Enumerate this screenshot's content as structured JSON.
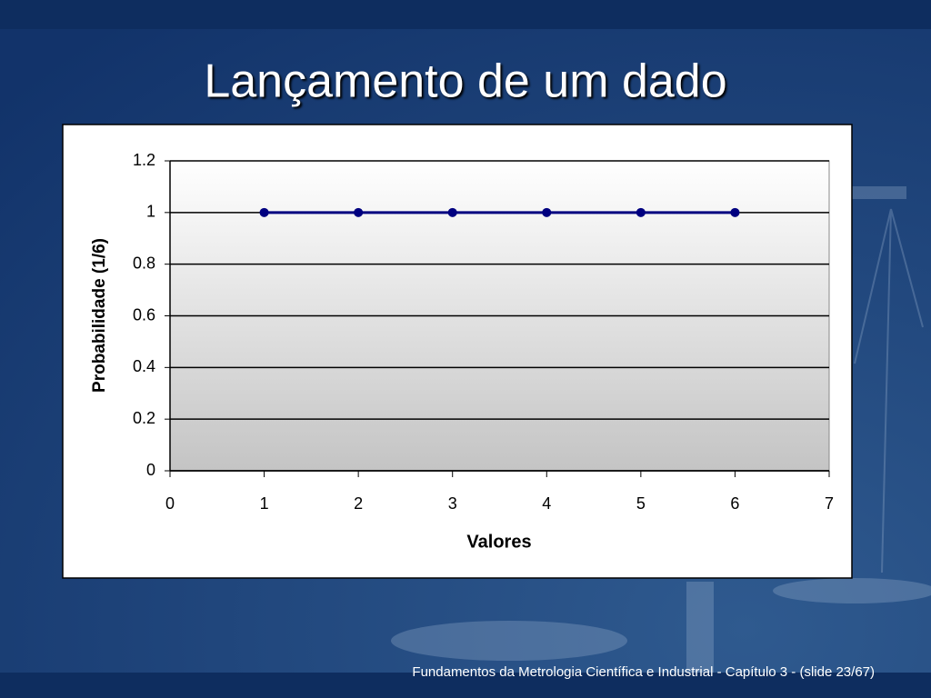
{
  "chart_data": {
    "type": "line",
    "title": "Lançamento de um dado",
    "x": [
      1,
      2,
      3,
      4,
      5,
      6
    ],
    "values": [
      1,
      1,
      1,
      1,
      1,
      1
    ],
    "color": "#000080",
    "xlabel": "Valores",
    "ylabel": "Probabilidade (1/6)",
    "xlim": [
      0,
      7
    ],
    "xticks": [
      0,
      1,
      2,
      3,
      4,
      5,
      6,
      7
    ],
    "ylim": [
      0,
      1.2
    ],
    "yticks": [
      0,
      0.2,
      0.4,
      0.6,
      0.8,
      1,
      1.2
    ],
    "grid": true
  },
  "footer": "Fundamentos da Metrologia Científica e Industrial - Capítulo 3 -  (slide 23/67)"
}
